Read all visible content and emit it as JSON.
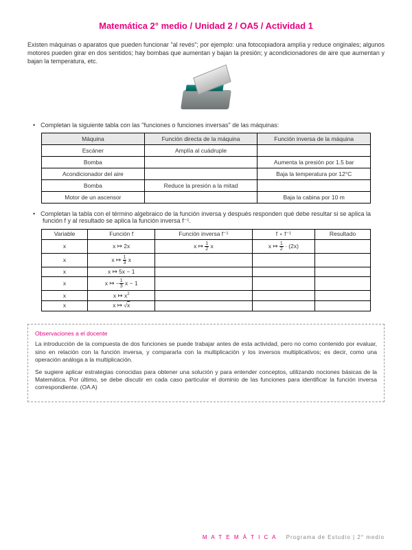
{
  "title": "Matemática 2° medio / Unidad 2 / OA5 / Actividad 1",
  "intro": "Existen máquinas o aparatos que pueden funcionar \"al revés\"; por ejemplo: una fotocopiadora amplía y reduce originales; algunos motores pueden girar en dos sentidos; hay bombas que aumentan y bajan la presión; y acondicionadores de aire que aumentan y bajan la temperatura, etc.",
  "bullet1": "Completan la siguiente tabla con las \"funciones o funciones inversas\" de las máquinas:",
  "table1": {
    "headers": [
      "Máquina",
      "Función directa de la máquina",
      "Función inversa de la máquina"
    ],
    "rows": [
      [
        "Escáner",
        "Amplía al cuádruple",
        ""
      ],
      [
        "Bomba",
        "",
        "Aumenta la presión por 1.5 bar"
      ],
      [
        "Acondicionador del aire",
        "",
        "Baja la temperatura por 12°C"
      ],
      [
        "Bomba",
        "Reduce la presión a la mitad",
        ""
      ],
      [
        "Motor de un ascensor",
        "",
        "Baja la cabina por 10 m"
      ]
    ]
  },
  "bullet2": "Completan la tabla con el término algebraico de la función inversa y después responden qué debe resultar si se aplica la función f y al resultado se aplica la función inversa f⁻¹.",
  "table2": {
    "headers": [
      "Variable",
      "Función f",
      "Función inversa f⁻¹",
      "f ∘ f⁻¹",
      "Resultado"
    ],
    "rows": [
      {
        "v": "x",
        "f": "x ↦ 2x",
        "fi": "x ↦ <frac>1|2</frac> x",
        "comp": "x ↦ <frac>1|2</frac> · (2x)",
        "r": ""
      },
      {
        "v": "x",
        "f": "x ↦ <frac>1|3</frac> x",
        "fi": "",
        "comp": "",
        "r": ""
      },
      {
        "v": "x",
        "f": "x ↦ 5x − 1",
        "fi": "",
        "comp": "",
        "r": ""
      },
      {
        "v": "x",
        "f": "x ↦ −<frac>1|3</frac> x − 1",
        "fi": "",
        "comp": "",
        "r": ""
      },
      {
        "v": "x",
        "f": "x ↦ x²",
        "fi": "",
        "comp": "",
        "r": ""
      },
      {
        "v": "x",
        "f": "x ↦ √x",
        "fi": "",
        "comp": "",
        "r": ""
      }
    ]
  },
  "obs": {
    "title": "Observaciones a el docente",
    "p1": "La introducción de la compuesta de dos funciones se puede trabajar antes de esta actividad, pero no como contenido por evaluar, sino en relación con la función inversa, y compararla con la multiplicación y los inversos multiplicativos; es decir, como una operación análoga a la multiplicación.",
    "p2": "Se sugiere aplicar estrategias conocidas para obtener una solución y para entender conceptos, utilizando nociones básicas de la Matemática. Por último, se debe discutir en cada caso particular el dominio de las funciones para identificar la función inversa correspondiente. (OA A)"
  },
  "footer": {
    "brand": "M A T E M Á T I C A",
    "rest": "Programa de Estudio  |  2° medio"
  }
}
